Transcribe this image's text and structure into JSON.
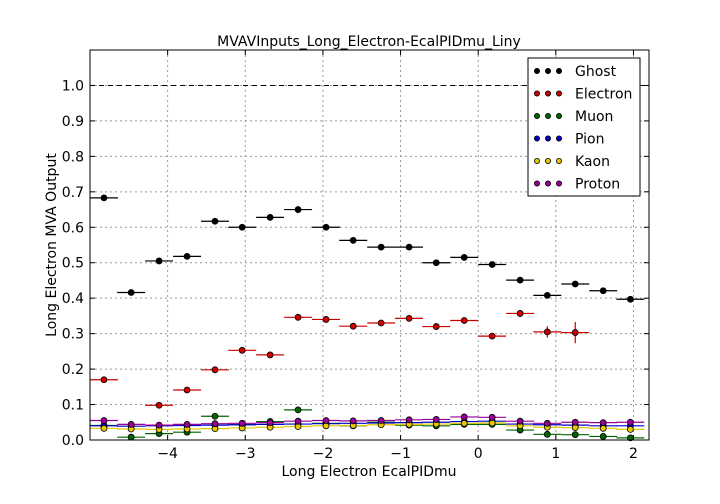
{
  "chart_data": {
    "type": "scatter",
    "title": "MVAVInputs_Long_Electron-EcalPIDmu_Liny",
    "xlabel": "Long Electron EcalPIDmu",
    "ylabel": "Long Electron MVA Output",
    "xlim": [
      -5.0,
      2.2
    ],
    "ylim": [
      0.0,
      1.1
    ],
    "xticks": [
      -4,
      -3,
      -2,
      -1,
      0,
      1,
      2
    ],
    "yticks": [
      0.0,
      0.1,
      0.2,
      0.3,
      0.4,
      0.5,
      0.6,
      0.7,
      0.8,
      0.9,
      1.0
    ],
    "ytick_labels": [
      "0.0",
      "0.1",
      "0.2",
      "0.3",
      "0.4",
      "0.5",
      "0.6",
      "0.7",
      "0.8",
      "0.9",
      "1.0"
    ],
    "xtick_labels": [
      "−4",
      "−3",
      "−2",
      "−1",
      "0",
      "1",
      "2"
    ],
    "grid": true,
    "reference_line_y": 1.0,
    "legend_position": "top-right",
    "x_bin_half_width": 0.18,
    "x": [
      -4.82,
      -4.47,
      -4.11,
      -3.75,
      -3.39,
      -3.04,
      -2.68,
      -2.32,
      -1.96,
      -1.61,
      -1.25,
      -0.89,
      -0.54,
      -0.18,
      0.18,
      0.54,
      0.89,
      1.25,
      1.61,
      1.96
    ],
    "series": [
      {
        "name": "Ghost",
        "color": "#000000",
        "values": [
          0.683,
          0.416,
          0.505,
          0.518,
          0.617,
          0.6,
          0.628,
          0.65,
          0.6,
          0.563,
          0.544,
          0.544,
          0.5,
          0.515,
          0.495,
          0.451,
          0.408,
          0.44,
          0.421,
          0.397
        ],
        "errors": [
          0,
          0,
          0,
          0,
          0,
          0,
          0,
          0,
          0,
          0,
          0,
          0,
          0,
          0,
          0,
          0,
          0.007,
          0,
          0,
          0
        ]
      },
      {
        "name": "Electron",
        "color": "#cc0000",
        "values": [
          0.17,
          null,
          0.098,
          0.141,
          0.198,
          0.253,
          0.24,
          0.346,
          0.34,
          0.321,
          0.33,
          0.343,
          0.32,
          0.337,
          0.293,
          0.357,
          0.305,
          0.303,
          null,
          null
        ],
        "errors": [
          0,
          0,
          0,
          0,
          0,
          0,
          0,
          0,
          0,
          0,
          0,
          0,
          0,
          0,
          0,
          0,
          0.016,
          0.03,
          0,
          0
        ]
      },
      {
        "name": "Muon",
        "color": "#006600",
        "values": [
          0.041,
          0.008,
          0.018,
          0.022,
          0.067,
          0.043,
          0.052,
          0.085,
          0.047,
          0.04,
          0.05,
          0.042,
          0.04,
          0.044,
          0.044,
          0.028,
          0.016,
          0.015,
          0.01,
          0.006
        ],
        "errors": [
          0,
          0,
          0,
          0,
          0,
          0,
          0,
          0,
          0,
          0,
          0,
          0,
          0,
          0,
          0,
          0,
          0,
          0,
          0,
          0
        ]
      },
      {
        "name": "Pion",
        "color": "#0000cc",
        "values": [
          0.04,
          0.039,
          0.04,
          0.041,
          0.042,
          0.043,
          0.044,
          0.045,
          0.046,
          0.047,
          0.048,
          0.049,
          0.05,
          0.052,
          0.053,
          0.045,
          0.043,
          0.042,
          0.04,
          0.04
        ],
        "errors": [
          0,
          0,
          0,
          0,
          0,
          0,
          0,
          0,
          0,
          0,
          0,
          0,
          0,
          0,
          0,
          0,
          0,
          0,
          0,
          0
        ]
      },
      {
        "name": "Kaon",
        "color": "#e6c800",
        "values": [
          0.033,
          0.031,
          0.03,
          0.031,
          0.032,
          0.034,
          0.036,
          0.038,
          0.04,
          0.041,
          0.043,
          0.044,
          0.045,
          0.047,
          0.048,
          0.04,
          0.036,
          0.035,
          0.033,
          0.03
        ],
        "errors": [
          0,
          0,
          0,
          0,
          0,
          0,
          0,
          0,
          0,
          0,
          0,
          0,
          0,
          0,
          0,
          0,
          0,
          0,
          0,
          0
        ]
      },
      {
        "name": "Proton",
        "color": "#990099",
        "values": [
          0.055,
          0.044,
          0.042,
          0.044,
          0.046,
          0.047,
          0.049,
          0.053,
          0.055,
          0.054,
          0.055,
          0.057,
          0.058,
          0.065,
          0.064,
          0.053,
          0.047,
          0.05,
          0.049,
          0.05
        ],
        "errors": [
          0,
          0,
          0,
          0,
          0,
          0,
          0,
          0,
          0,
          0,
          0,
          0,
          0,
          0,
          0,
          0,
          0,
          0,
          0,
          0
        ]
      }
    ]
  }
}
